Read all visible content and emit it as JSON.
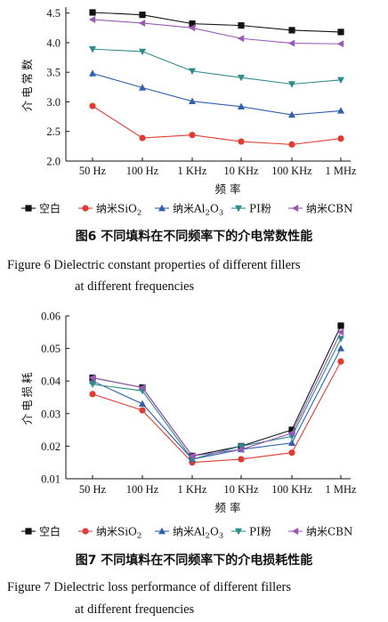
{
  "charts": [
    {
      "legend_labels": [
        "空白",
        "纳米SiO2",
        "纳米Al2O3",
        "PI粉",
        "纳米CBN"
      ],
      "caption_cn": "图6 不同填料在不同频率下的介电常数性能",
      "caption_en_1": "Figure 6 Dielectric constant properties of different fillers",
      "caption_en_2": "at different frequencies"
    },
    {
      "legend_labels": [
        "空白",
        "纳米SiO2",
        "纳米Al2O3",
        "PI粉",
        "纳米CBN"
      ],
      "caption_cn": "图7 不同填料在不同频率下的介电损耗性能",
      "caption_en_1": "Figure 7 Dielectric loss performance of different fillers",
      "caption_en_2": "at different frequencies"
    }
  ],
  "series_colors": [
    "#111111",
    "#e03c31",
    "#2f5fad",
    "#2e8b8b",
    "#9b59b6"
  ],
  "series_markers": [
    "square",
    "circle",
    "triangle-up",
    "triangle-down",
    "triangle-left"
  ],
  "chart_data": [
    {
      "type": "line",
      "categories": [
        "50 Hz",
        "100 Hz",
        "1 KHz",
        "10 KHz",
        "100 KHz",
        "1 MHz"
      ],
      "xlabel": "频率",
      "ylabel": "介电常数",
      "ylim": [
        2.0,
        4.6
      ],
      "yticks": [
        "2.0",
        "2.5",
        "3.0",
        "3.5",
        "4.0",
        "4.5"
      ],
      "grid": false,
      "legend_position": "bottom",
      "series": [
        {
          "name": "空白",
          "values": [
            4.51,
            4.47,
            4.32,
            4.29,
            4.21,
            4.18
          ]
        },
        {
          "name": "纳米SiO2",
          "values": [
            2.93,
            2.39,
            2.44,
            2.33,
            2.28,
            2.38
          ]
        },
        {
          "name": "纳米Al2O3",
          "values": [
            3.48,
            3.24,
            3.01,
            2.92,
            2.78,
            2.85
          ]
        },
        {
          "name": "PI粉",
          "values": [
            3.89,
            3.85,
            3.52,
            3.41,
            3.3,
            3.37
          ]
        },
        {
          "name": "纳米CBN",
          "values": [
            4.39,
            4.33,
            4.25,
            4.07,
            3.99,
            3.98
          ]
        }
      ]
    },
    {
      "type": "line",
      "categories": [
        "50 Hz",
        "100 Hz",
        "1 KHz",
        "10 KHz",
        "100 KHz",
        "1 MHz"
      ],
      "xlabel": "频率",
      "ylabel": "介电损耗",
      "ylim": [
        0.01,
        0.06
      ],
      "yticks": [
        "0.01",
        "0.02",
        "0.03",
        "0.04",
        "0.05",
        "0.06"
      ],
      "grid": false,
      "legend_position": "bottom",
      "series": [
        {
          "name": "空白",
          "values": [
            0.041,
            0.038,
            0.017,
            0.02,
            0.025,
            0.057
          ]
        },
        {
          "name": "纳米SiO2",
          "values": [
            0.036,
            0.031,
            0.015,
            0.016,
            0.018,
            0.046
          ]
        },
        {
          "name": "纳米Al2O3",
          "values": [
            0.04,
            0.033,
            0.016,
            0.019,
            0.021,
            0.05
          ]
        },
        {
          "name": "PI粉",
          "values": [
            0.039,
            0.037,
            0.016,
            0.02,
            0.023,
            0.053
          ]
        },
        {
          "name": "纳米CBN",
          "values": [
            0.041,
            0.038,
            0.017,
            0.019,
            0.024,
            0.055
          ]
        }
      ]
    }
  ]
}
